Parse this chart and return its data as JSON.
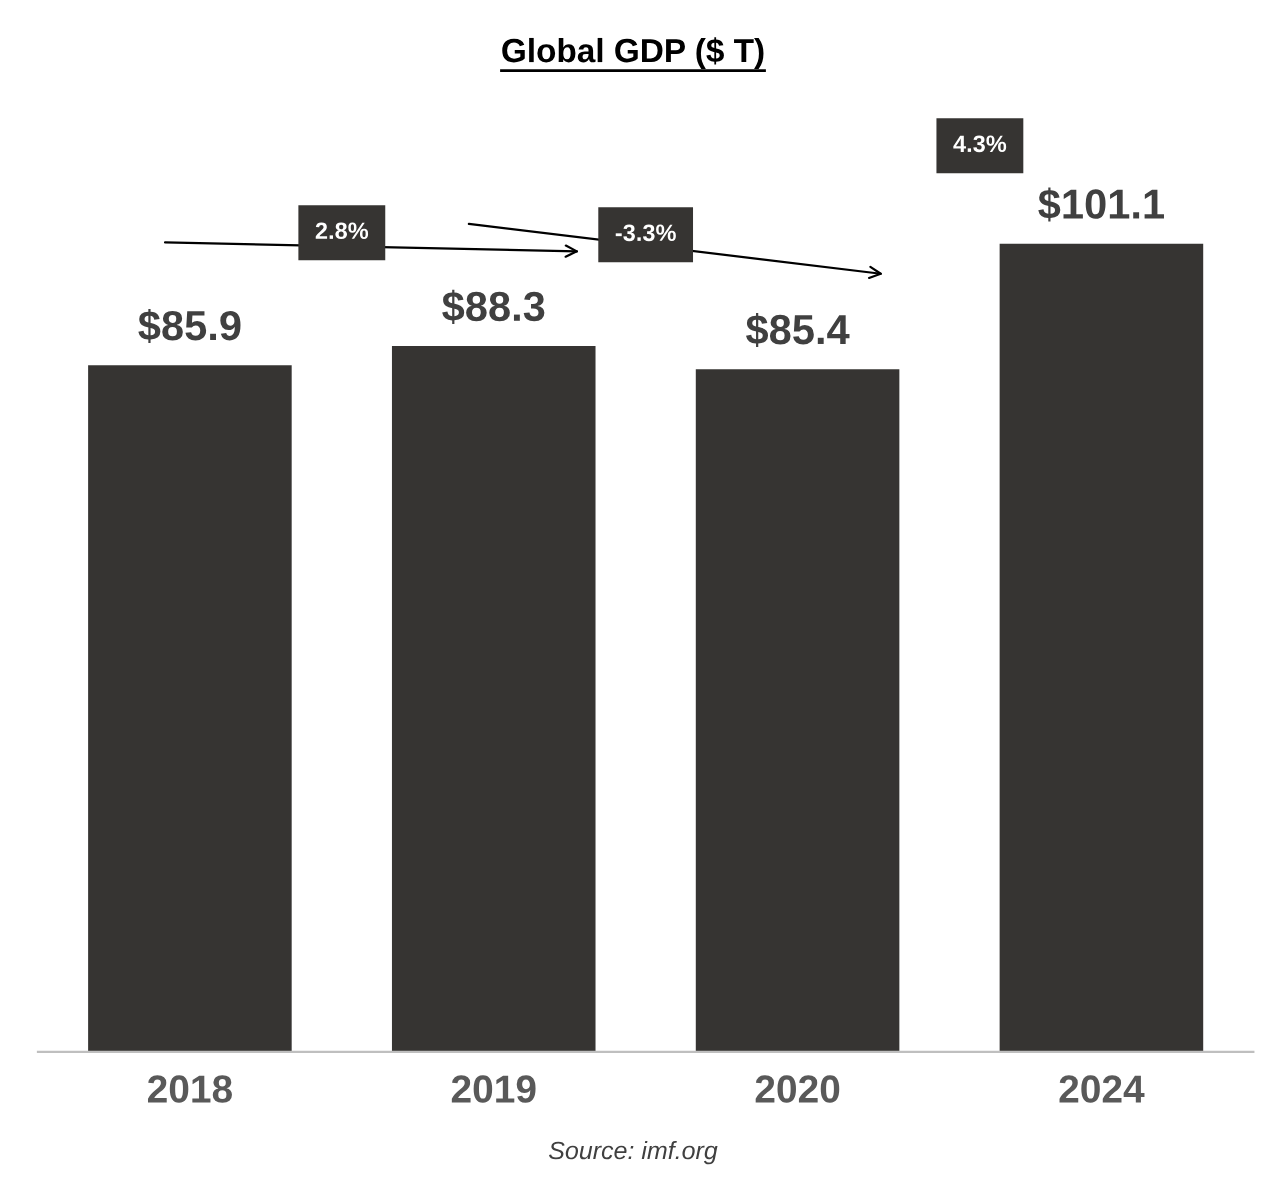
{
  "chart_data": {
    "type": "bar",
    "title": "Global GDP ($ T)",
    "categories": [
      "2018",
      "2019",
      "2020",
      "2024"
    ],
    "values": [
      85.9,
      88.3,
      85.4,
      101.1
    ],
    "value_labels": [
      "$85.9",
      "$88.3",
      "$85.4",
      "$101.1"
    ],
    "color": "#363432",
    "tick_labels": "x",
    "grid": false,
    "annotations": [
      "2.8%",
      "-3.3%",
      "4.3%",
      "Source: imf.org"
    ]
  }
}
